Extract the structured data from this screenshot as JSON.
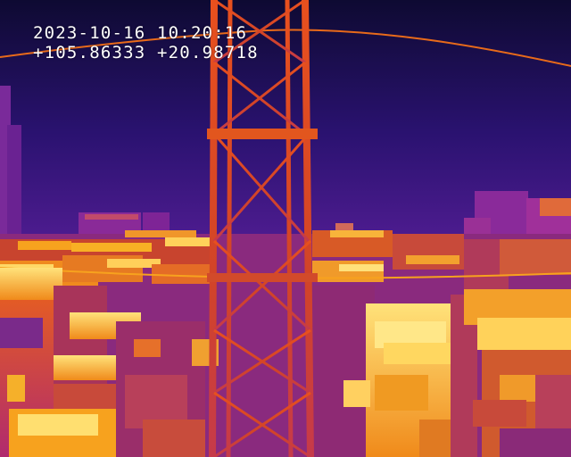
{
  "overlay": {
    "timestamp": "2023-10-16 10:20:16",
    "coordinates": "+105.86333 +20.98718"
  },
  "palette": {
    "sky_top": "#0e0a32",
    "sky_bottom": "#4a1a8e",
    "cold": "#5a1a8a",
    "cool": "#a02a8a",
    "warm": "#e0501e",
    "hot": "#f7a21e",
    "hottest": "#fff0a0"
  }
}
